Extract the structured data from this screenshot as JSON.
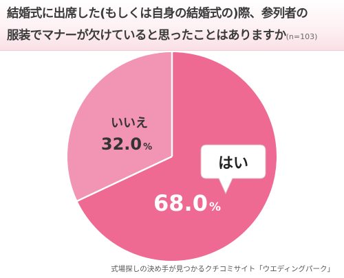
{
  "header": {
    "title_line1": "結婚式に出席した(もしくは自身の結婚式の)際、参列者の",
    "title_line2": "服装でマナーが欠けていると思ったことはありますか",
    "sample_size": "(n=103)"
  },
  "chart_data": {
    "type": "pie",
    "title": "結婚式に出席した(もしくは自身の結婚式の)際、参列者の服装でマナーが欠けていると思ったことはありますか",
    "slices": [
      {
        "label": "はい",
        "value": 68.0,
        "display": "68.0",
        "unit": "%",
        "color": "#ee6a92"
      },
      {
        "label": "いいえ",
        "value": 32.0,
        "display": "32.0",
        "unit": "%",
        "color": "#f294b3"
      }
    ]
  },
  "source": "式場探しの決め手が見つかるクチコミサイト「ウエディングパーク」"
}
